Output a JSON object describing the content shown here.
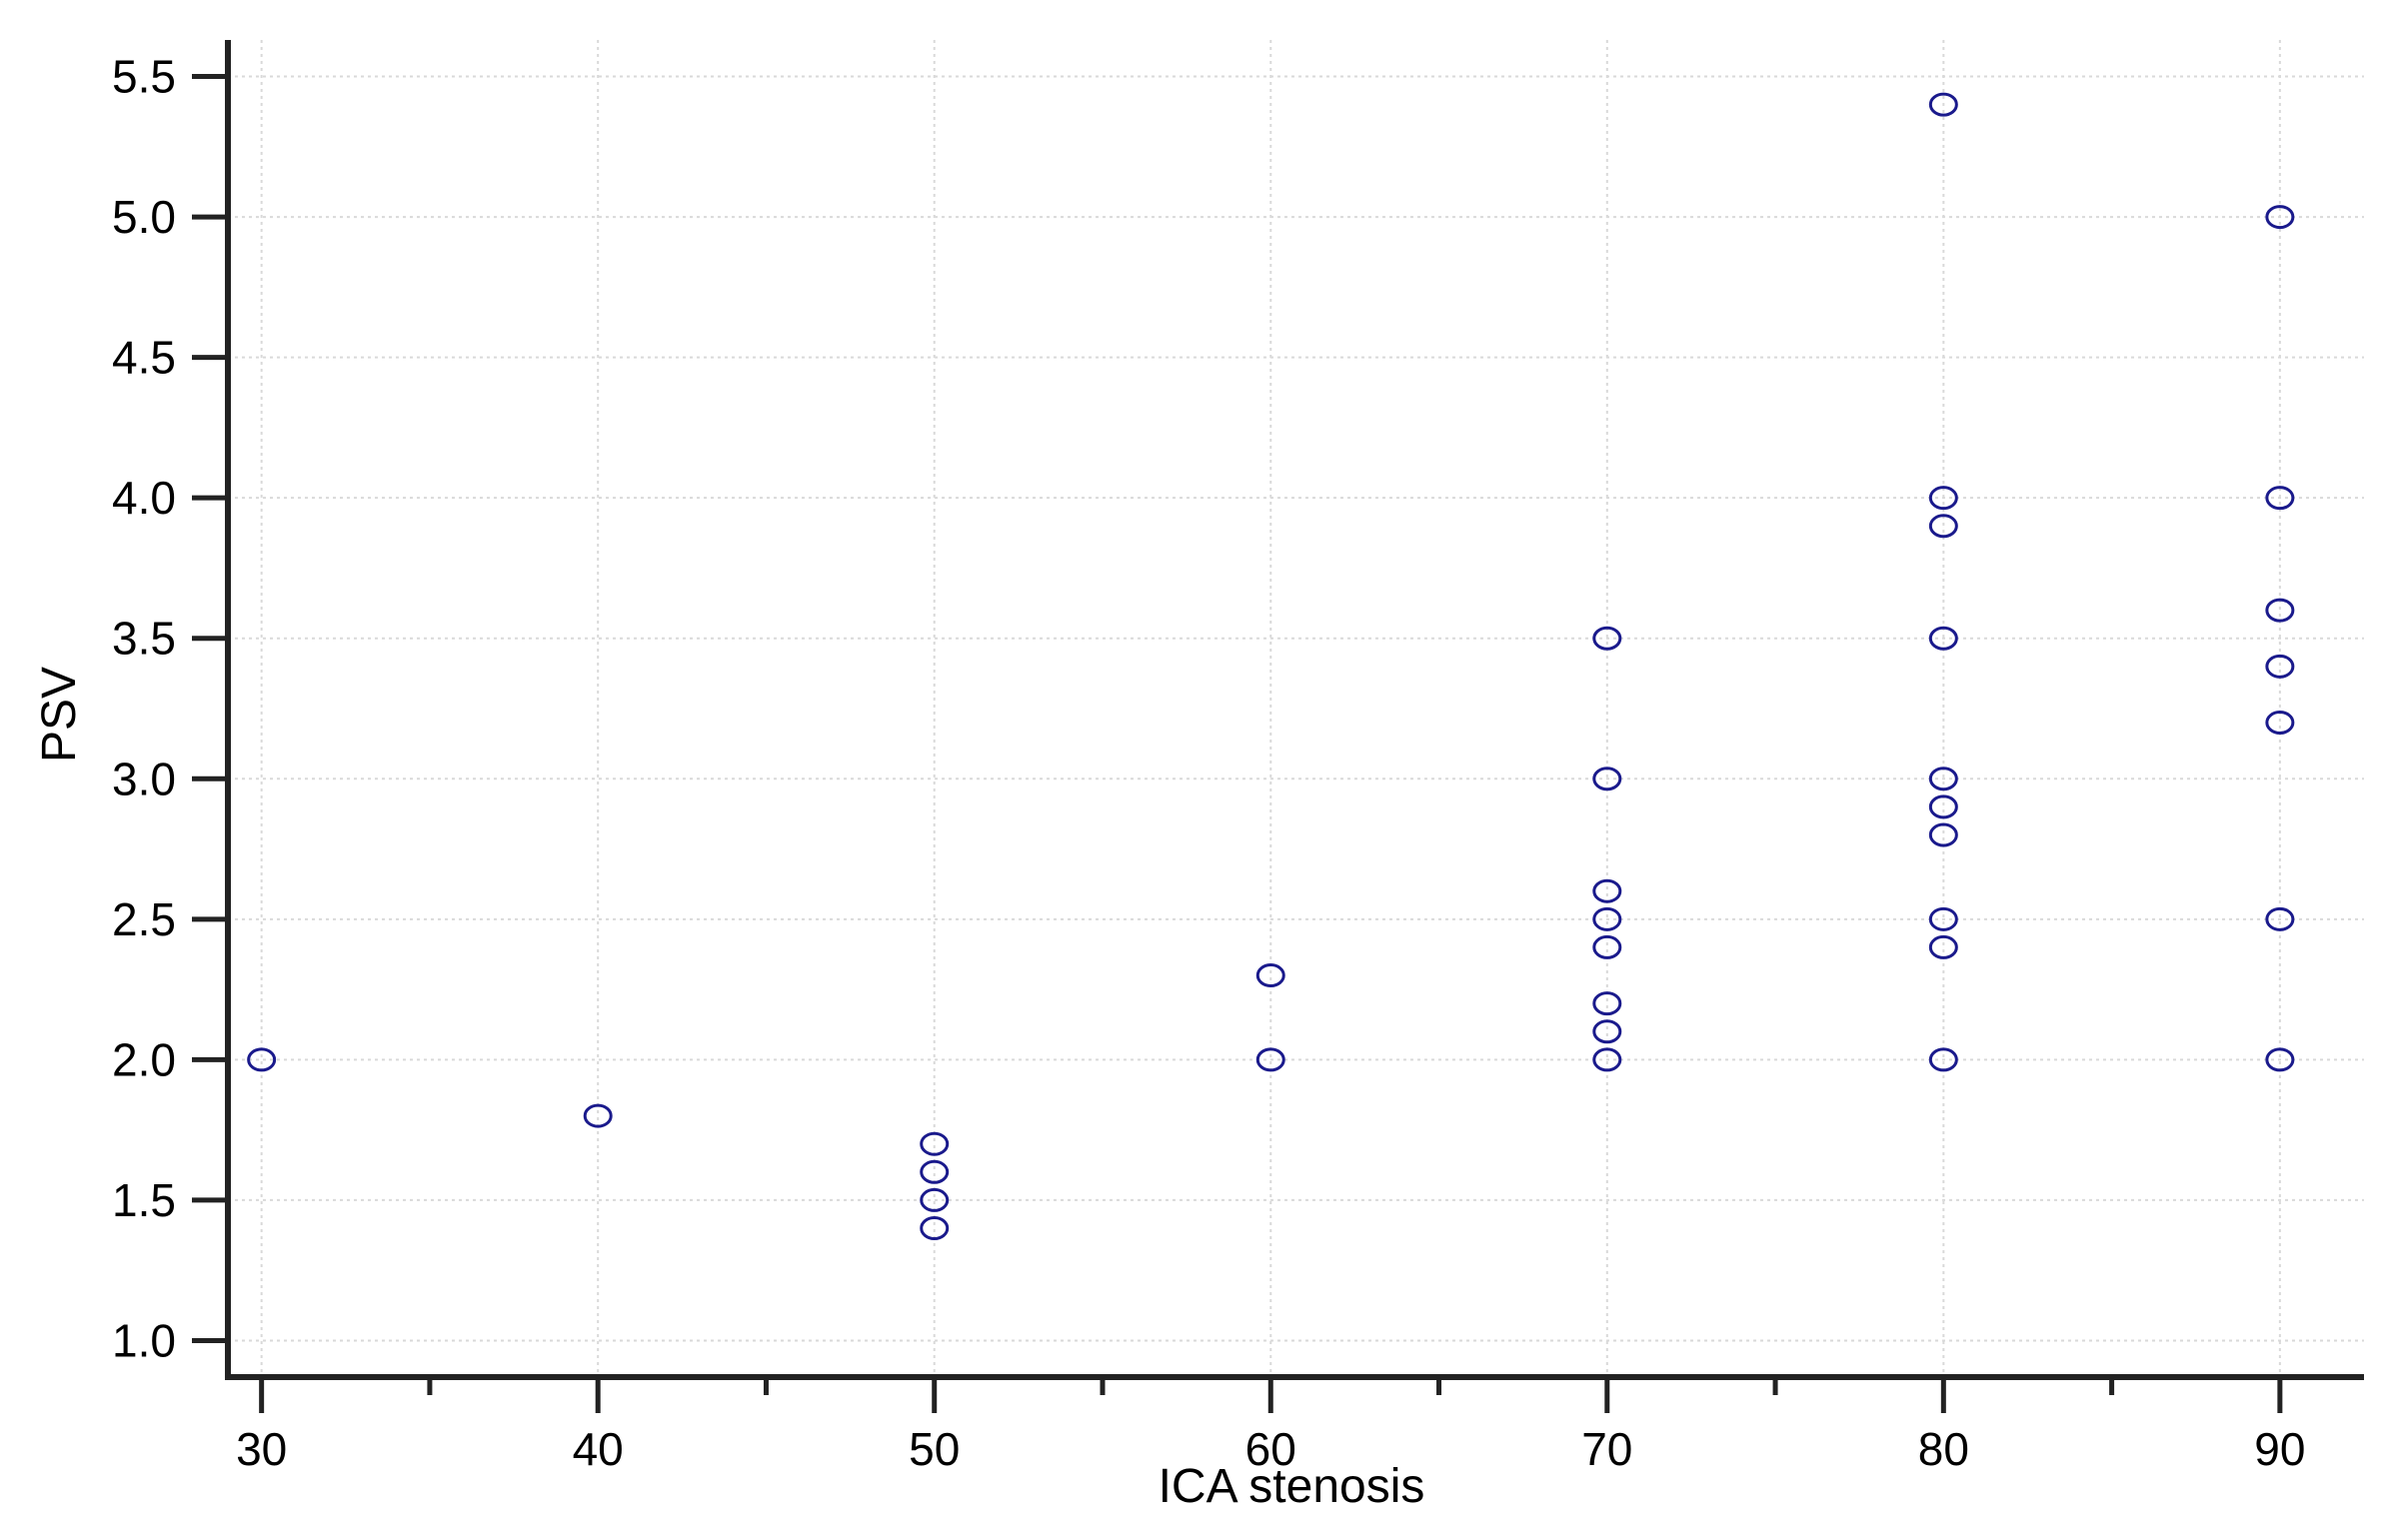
{
  "chart_data": {
    "type": "scatter",
    "xlabel": "ICA stenosis",
    "ylabel": "PSV",
    "xlim": [
      29,
      92.5
    ],
    "ylim": [
      0.87,
      5.63
    ],
    "x_ticks": [
      30,
      40,
      50,
      60,
      70,
      80,
      90
    ],
    "x_minor_ticks": [
      35,
      45,
      55,
      65,
      75,
      85
    ],
    "y_ticks": [
      1.0,
      1.5,
      2.0,
      2.5,
      3.0,
      3.5,
      4.0,
      4.5,
      5.0,
      5.5
    ],
    "y_tick_labels": [
      "1.0",
      "1.5",
      "2.0",
      "2.5",
      "3.0",
      "3.5",
      "4.0",
      "4.5",
      "5.0",
      "5.5"
    ],
    "grid": true,
    "marker": "open-circle",
    "colors": {
      "marker": "#1a1a8c",
      "axis": "#222222",
      "grid": "#d9d9d9"
    },
    "points": [
      {
        "x": 30,
        "y": 2.0
      },
      {
        "x": 40,
        "y": 1.8
      },
      {
        "x": 50,
        "y": 1.7
      },
      {
        "x": 50,
        "y": 1.6
      },
      {
        "x": 50,
        "y": 1.5
      },
      {
        "x": 50,
        "y": 1.4
      },
      {
        "x": 60,
        "y": 2.3
      },
      {
        "x": 60,
        "y": 2.0
      },
      {
        "x": 70,
        "y": 3.5
      },
      {
        "x": 70,
        "y": 3.0
      },
      {
        "x": 70,
        "y": 2.6
      },
      {
        "x": 70,
        "y": 2.5
      },
      {
        "x": 70,
        "y": 2.4
      },
      {
        "x": 70,
        "y": 2.2
      },
      {
        "x": 70,
        "y": 2.1
      },
      {
        "x": 70,
        "y": 2.0
      },
      {
        "x": 80,
        "y": 5.4
      },
      {
        "x": 80,
        "y": 4.0
      },
      {
        "x": 80,
        "y": 3.9
      },
      {
        "x": 80,
        "y": 3.5
      },
      {
        "x": 80,
        "y": 3.0
      },
      {
        "x": 80,
        "y": 2.9
      },
      {
        "x": 80,
        "y": 2.8
      },
      {
        "x": 80,
        "y": 2.5
      },
      {
        "x": 80,
        "y": 2.4
      },
      {
        "x": 80,
        "y": 2.0
      },
      {
        "x": 90,
        "y": 5.0
      },
      {
        "x": 90,
        "y": 4.0
      },
      {
        "x": 90,
        "y": 3.6
      },
      {
        "x": 90,
        "y": 3.4
      },
      {
        "x": 90,
        "y": 3.2
      },
      {
        "x": 90,
        "y": 2.5
      },
      {
        "x": 90,
        "y": 2.0
      }
    ]
  }
}
